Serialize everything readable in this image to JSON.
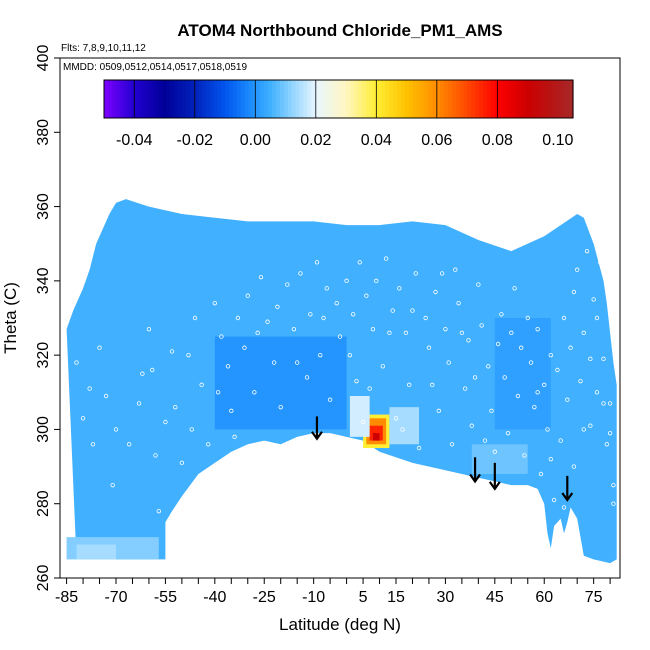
{
  "chart_data": {
    "type": "heatmap",
    "title": "ATOM4 Northbound Chloride_PM1_AMS",
    "flights_note": "Flts: 7,8,9,10,11,12",
    "dates_note": "MMDD: 0509,0512,0514,0517,0518,0519",
    "xlabel": "Latitude (deg N)",
    "ylabel": "Theta (C)",
    "xlim": [
      -87,
      83
    ],
    "ylim": [
      260,
      400
    ],
    "x_ticks": [
      -85,
      -80,
      -75,
      -70,
      -65,
      -60,
      -55,
      -50,
      -45,
      -40,
      -35,
      -30,
      -25,
      -20,
      -15,
      -10,
      -5,
      0,
      5,
      10,
      15,
      20,
      25,
      30,
      35,
      40,
      45,
      50,
      55,
      60,
      65,
      70,
      75,
      80
    ],
    "x_tick_labels": [
      "-85",
      "-70",
      "-55",
      "-40",
      "-25",
      "-10",
      "5",
      "15",
      "30",
      "45",
      "60",
      "75"
    ],
    "x_tick_label_values": [
      -85,
      -70,
      -55,
      -40,
      -25,
      -10,
      5,
      15,
      30,
      45,
      60,
      75
    ],
    "y_ticks": [
      260,
      280,
      300,
      320,
      340,
      360,
      380,
      400
    ],
    "y_tick_labels": [
      "260",
      "280",
      "300",
      "320",
      "340",
      "360",
      "380",
      "400"
    ],
    "grid": false,
    "colorbar": {
      "placement": "top",
      "range": [
        -0.05,
        0.105
      ],
      "tick_values": [
        -0.04,
        -0.02,
        0.0,
        0.02,
        0.04,
        0.06,
        0.08,
        0.1
      ],
      "tick_labels": [
        "-0.04",
        "-0.02",
        "0.00",
        "0.02",
        "0.04",
        "0.06",
        "0.08",
        "0.10"
      ],
      "divider_values": [
        -0.04,
        -0.02,
        0.0,
        0.02,
        0.04,
        0.06,
        0.08
      ],
      "stops": [
        {
          "value": -0.05,
          "color": "#7f00ff"
        },
        {
          "value": -0.04,
          "color": "#2200d0"
        },
        {
          "value": -0.03,
          "color": "#000099"
        },
        {
          "value": -0.02,
          "color": "#0022bb"
        },
        {
          "value": -0.01,
          "color": "#0055ee"
        },
        {
          "value": -0.001,
          "color": "#1e90ff"
        },
        {
          "value": 0.005,
          "color": "#40b0ff"
        },
        {
          "value": 0.012,
          "color": "#8fd3ff"
        },
        {
          "value": 0.02,
          "color": "#e8f6ff"
        },
        {
          "value": 0.03,
          "color": "#fff6c0"
        },
        {
          "value": 0.04,
          "color": "#ffee33"
        },
        {
          "value": 0.05,
          "color": "#ffc200"
        },
        {
          "value": 0.06,
          "color": "#ff8c00"
        },
        {
          "value": 0.07,
          "color": "#ff4800"
        },
        {
          "value": 0.08,
          "color": "#ff0000"
        },
        {
          "value": 0.09,
          "color": "#cc0000"
        },
        {
          "value": 0.1,
          "color": "#b21a1a"
        },
        {
          "value": 0.105,
          "color": "#a82828"
        }
      ]
    },
    "field_background_value": 0.005,
    "data_envelope_top": [
      [
        -85,
        327
      ],
      [
        -83,
        332
      ],
      [
        -80,
        338
      ],
      [
        -78,
        343
      ],
      [
        -76,
        350
      ],
      [
        -74,
        354
      ],
      [
        -72,
        358
      ],
      [
        -70,
        361
      ],
      [
        -67,
        362
      ],
      [
        -60,
        360
      ],
      [
        -50,
        358
      ],
      [
        -40,
        357
      ],
      [
        -30,
        356
      ],
      [
        -20,
        356
      ],
      [
        -10,
        356
      ],
      [
        0,
        355
      ],
      [
        10,
        355
      ],
      [
        20,
        356
      ],
      [
        30,
        355
      ],
      [
        40,
        351
      ],
      [
        50,
        348
      ],
      [
        60,
        352
      ],
      [
        65,
        355
      ],
      [
        70,
        358
      ],
      [
        72,
        357
      ],
      [
        75,
        350
      ],
      [
        78,
        340
      ],
      [
        79,
        334
      ],
      [
        80,
        326
      ],
      [
        81,
        318
      ],
      [
        82,
        312
      ]
    ],
    "data_envelope_bottom": [
      [
        -82,
        265
      ],
      [
        -70,
        265
      ],
      [
        -55,
        265
      ],
      [
        -55,
        275
      ],
      [
        -53,
        278
      ],
      [
        -50,
        282
      ],
      [
        -45,
        288
      ],
      [
        -40,
        291
      ],
      [
        -35,
        294
      ],
      [
        -30,
        296
      ],
      [
        -25,
        297
      ],
      [
        -20,
        296
      ],
      [
        -15,
        298
      ],
      [
        -10,
        299
      ],
      [
        -5,
        299
      ],
      [
        0,
        298
      ],
      [
        5,
        297
      ],
      [
        10,
        294
      ],
      [
        20,
        291
      ],
      [
        30,
        289
      ],
      [
        40,
        287
      ],
      [
        45,
        286
      ],
      [
        50,
        285
      ],
      [
        55,
        285
      ],
      [
        58,
        284
      ],
      [
        60,
        280
      ],
      [
        61,
        272
      ],
      [
        62,
        268
      ],
      [
        63,
        274
      ],
      [
        65,
        276
      ],
      [
        66,
        272
      ],
      [
        67,
        275
      ],
      [
        68,
        279
      ],
      [
        70,
        276
      ],
      [
        72,
        266
      ],
      [
        75,
        265
      ],
      [
        80,
        264
      ],
      [
        82,
        265
      ]
    ],
    "features": [
      {
        "x_min": 5,
        "x_max": 13,
        "y_min": 295,
        "y_max": 304,
        "value": 0.04
      },
      {
        "x_min": 6,
        "x_max": 12,
        "y_min": 296,
        "y_max": 303,
        "value": 0.06
      },
      {
        "x_min": 7,
        "x_max": 11,
        "y_min": 297,
        "y_max": 301,
        "value": 0.075
      },
      {
        "x_min": 8,
        "x_max": 10,
        "y_min": 297,
        "y_max": 299,
        "value": 0.09
      },
      {
        "x_min": 1,
        "x_max": 7,
        "y_min": 298,
        "y_max": 309,
        "value": 0.018
      },
      {
        "x_min": 13,
        "x_max": 22,
        "y_min": 296,
        "y_max": 306,
        "value": 0.014
      },
      {
        "x_min": -85,
        "x_max": -57,
        "y_min": 265,
        "y_max": 271,
        "value": 0.011
      },
      {
        "x_min": -82,
        "x_max": -70,
        "y_min": 265,
        "y_max": 269,
        "value": 0.014
      },
      {
        "x_min": -40,
        "x_max": 0,
        "y_min": 300,
        "y_max": 325,
        "value": 0.0
      },
      {
        "x_min": 45,
        "x_max": 62,
        "y_min": 300,
        "y_max": 330,
        "value": 0.002
      },
      {
        "x_min": 38,
        "x_max": 55,
        "y_min": 288,
        "y_max": 296,
        "value": 0.009
      }
    ],
    "arrows": [
      {
        "x": -9,
        "y_top": 303.5,
        "y_bottom": 297.5
      },
      {
        "x": 39,
        "y_top": 292.5,
        "y_bottom": 286
      },
      {
        "x": 45,
        "y_top": 291,
        "y_bottom": 284
      },
      {
        "x": 67,
        "y_top": 287.5,
        "y_bottom": 281
      }
    ],
    "sample_points": [
      [
        -80,
        303
      ],
      [
        -78,
        311
      ],
      [
        -75,
        322
      ],
      [
        -73,
        309
      ],
      [
        -70,
        300
      ],
      [
        -66,
        296
      ],
      [
        -62,
        315
      ],
      [
        -60,
        327
      ],
      [
        -58,
        293
      ],
      [
        -57,
        278
      ],
      [
        -55,
        302
      ],
      [
        -52,
        306
      ],
      [
        -50,
        291
      ],
      [
        -48,
        320
      ],
      [
        -46,
        330
      ],
      [
        -44,
        312
      ],
      [
        -42,
        296
      ],
      [
        -40,
        334
      ],
      [
        -38,
        325
      ],
      [
        -36,
        317
      ],
      [
        -35,
        305
      ],
      [
        -33,
        330
      ],
      [
        -31,
        322
      ],
      [
        -30,
        336
      ],
      [
        -28,
        310
      ],
      [
        -26,
        341
      ],
      [
        -24,
        329
      ],
      [
        -22,
        318
      ],
      [
        -20,
        306
      ],
      [
        -18,
        339
      ],
      [
        -16,
        327
      ],
      [
        -14,
        342
      ],
      [
        -12,
        314
      ],
      [
        -11,
        331
      ],
      [
        -9,
        345
      ],
      [
        -8,
        320
      ],
      [
        -6,
        338
      ],
      [
        -5,
        308
      ],
      [
        -3,
        334
      ],
      [
        -2,
        325
      ],
      [
        0,
        340
      ],
      [
        2,
        331
      ],
      [
        3,
        313
      ],
      [
        4,
        345
      ],
      [
        5,
        302
      ],
      [
        6,
        336
      ],
      [
        8,
        327
      ],
      [
        9,
        340
      ],
      [
        11,
        317
      ],
      [
        12,
        346
      ],
      [
        14,
        332
      ],
      [
        15,
        303
      ],
      [
        16,
        338
      ],
      [
        18,
        326
      ],
      [
        19,
        312
      ],
      [
        21,
        342
      ],
      [
        22,
        295
      ],
      [
        24,
        330
      ],
      [
        25,
        322
      ],
      [
        27,
        337
      ],
      [
        28,
        305
      ],
      [
        30,
        327
      ],
      [
        31,
        318
      ],
      [
        33,
        343
      ],
      [
        34,
        334
      ],
      [
        36,
        311
      ],
      [
        37,
        324
      ],
      [
        38,
        301
      ],
      [
        40,
        339
      ],
      [
        41,
        328
      ],
      [
        42,
        297
      ],
      [
        43,
        317
      ],
      [
        44,
        305
      ],
      [
        46,
        323
      ],
      [
        47,
        331
      ],
      [
        48,
        314
      ],
      [
        49,
        299
      ],
      [
        50,
        326
      ],
      [
        52,
        309
      ],
      [
        53,
        322
      ],
      [
        54,
        293
      ],
      [
        56,
        318
      ],
      [
        57,
        306
      ],
      [
        58,
        327
      ],
      [
        59,
        288
      ],
      [
        60,
        312
      ],
      [
        61,
        300
      ],
      [
        62,
        320
      ],
      [
        63,
        281
      ],
      [
        64,
        316
      ],
      [
        65,
        297
      ],
      [
        66,
        330
      ],
      [
        67,
        308
      ],
      [
        68,
        322
      ],
      [
        69,
        290
      ],
      [
        70,
        343
      ],
      [
        71,
        313
      ],
      [
        72,
        326
      ],
      [
        73,
        348
      ],
      [
        74,
        301
      ],
      [
        75,
        335
      ],
      [
        76,
        310
      ],
      [
        77,
        345
      ],
      [
        78,
        319
      ],
      [
        79,
        296
      ],
      [
        80,
        307
      ],
      [
        81,
        285
      ],
      [
        -84,
        290
      ],
      [
        -82,
        318
      ],
      [
        -77,
        296
      ],
      [
        -71,
        285
      ],
      [
        -63,
        307
      ],
      [
        -59,
        316
      ],
      [
        -53,
        321
      ],
      [
        -47,
        300
      ],
      [
        -39,
        310
      ],
      [
        -34,
        298
      ],
      [
        -27,
        326
      ],
      [
        -21,
        333
      ],
      [
        -15,
        318
      ],
      [
        -7,
        330
      ],
      [
        1,
        320
      ],
      [
        7,
        311
      ],
      [
        13,
        326
      ],
      [
        17,
        300
      ],
      [
        20,
        332
      ],
      [
        26,
        312
      ],
      [
        29,
        342
      ],
      [
        32,
        296
      ],
      [
        35,
        326
      ],
      [
        39,
        314
      ],
      [
        45,
        294
      ],
      [
        51,
        338
      ],
      [
        55,
        330
      ],
      [
        58,
        310
      ],
      [
        62,
        292
      ],
      [
        66,
        279
      ],
      [
        69,
        337
      ],
      [
        72,
        300
      ],
      [
        74,
        319
      ],
      [
        76,
        330
      ],
      [
        78,
        307
      ],
      [
        80,
        299
      ],
      [
        81,
        280
      ]
    ]
  }
}
